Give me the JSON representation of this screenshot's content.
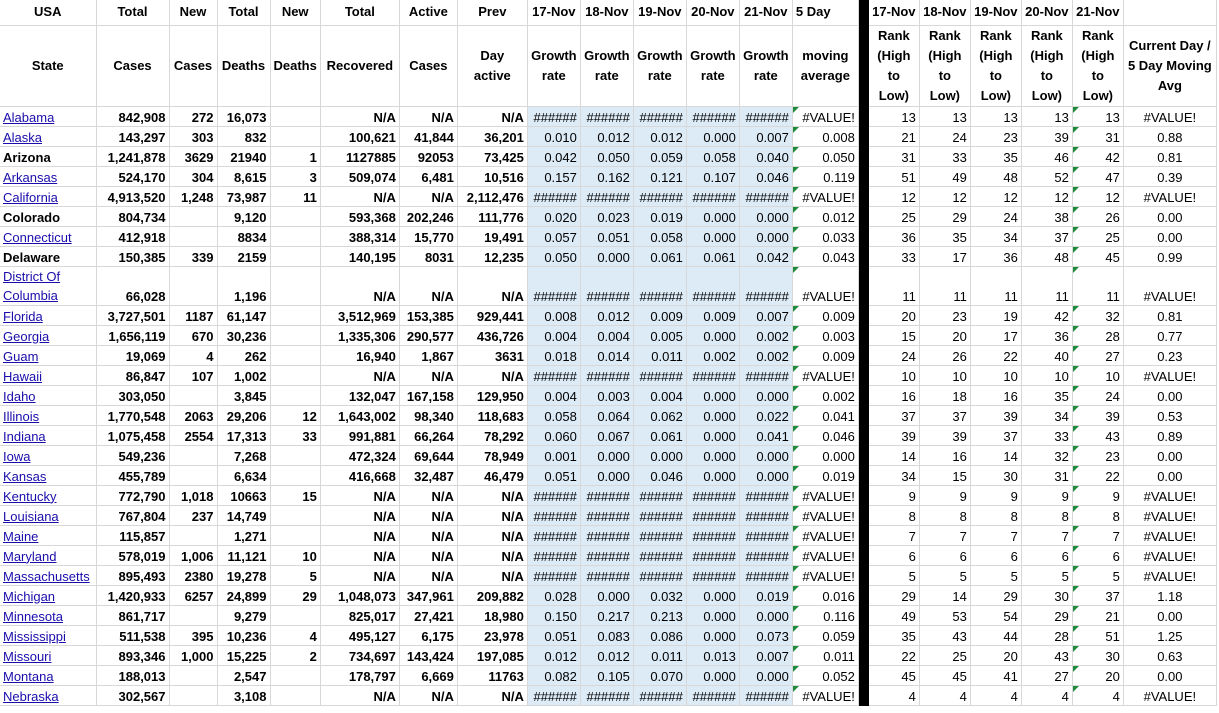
{
  "header1": [
    "USA",
    "Total",
    "New",
    "Total",
    "New",
    "Total",
    "Active",
    "Prev",
    "17-Nov",
    "18-Nov",
    "19-Nov",
    "20-Nov",
    "21-Nov",
    "5 Day",
    "",
    "17-Nov",
    "18-Nov",
    "19-Nov",
    "20-Nov",
    "21-Nov",
    ""
  ],
  "header2": [
    "State",
    "Cases",
    "Cases",
    "Deaths",
    "Deaths",
    "Recovered",
    "Cases",
    "Day active",
    "Growth rate",
    "Growth rate",
    "Growth rate",
    "Growth rate",
    "Growth rate",
    "moving average",
    "",
    "Rank (High to Low)",
    "Rank (High to Low)",
    "Rank (High to Low)",
    "Rank (High to Low)",
    "Rank (High to Low)",
    "Current Day / 5 Day Moving Avg"
  ],
  "rows": [
    {
      "state": "Alabama",
      "bold": false,
      "c": [
        "842,908",
        "272",
        "16,073",
        "",
        "N/A",
        "N/A",
        "N/A",
        "######",
        "######",
        "######",
        "######",
        "######",
        "#VALUE!",
        "13",
        "13",
        "13",
        "13",
        "13",
        "#VALUE!"
      ]
    },
    {
      "state": "Alaska",
      "bold": false,
      "c": [
        "143,297",
        "303",
        "832",
        "",
        "100,621",
        "41,844",
        "36,201",
        "0.010",
        "0.012",
        "0.012",
        "0.000",
        "0.007",
        "0.008",
        "21",
        "24",
        "23",
        "39",
        "31",
        "0.88"
      ]
    },
    {
      "state": "Arizona",
      "bold": true,
      "c": [
        "1,241,878",
        "3629",
        "21940",
        "1",
        "1127885",
        "92053",
        "73,425",
        "0.042",
        "0.050",
        "0.059",
        "0.058",
        "0.040",
        "0.050",
        "31",
        "33",
        "35",
        "46",
        "42",
        "0.81"
      ]
    },
    {
      "state": "Arkansas",
      "bold": false,
      "c": [
        "524,170",
        "304",
        "8,615",
        "3",
        "509,074",
        "6,481",
        "10,516",
        "0.157",
        "0.162",
        "0.121",
        "0.107",
        "0.046",
        "0.119",
        "51",
        "49",
        "48",
        "52",
        "47",
        "0.39"
      ]
    },
    {
      "state": "California",
      "bold": false,
      "c": [
        "4,913,520",
        "1,248",
        "73,987",
        "11",
        "N/A",
        "N/A",
        "2,112,476",
        "######",
        "######",
        "######",
        "######",
        "######",
        "#VALUE!",
        "12",
        "12",
        "12",
        "12",
        "12",
        "#VALUE!"
      ]
    },
    {
      "state": "Colorado",
      "bold": true,
      "c": [
        "804,734",
        "",
        "9,120",
        "",
        "593,368",
        "202,246",
        "111,776",
        "0.020",
        "0.023",
        "0.019",
        "0.000",
        "0.000",
        "0.012",
        "25",
        "29",
        "24",
        "38",
        "26",
        "0.00"
      ]
    },
    {
      "state": "Connecticut",
      "bold": false,
      "c": [
        "412,918",
        "",
        "8834",
        "",
        "388,314",
        "15,770",
        "19,491",
        "0.057",
        "0.051",
        "0.058",
        "0.000",
        "0.000",
        "0.033",
        "36",
        "35",
        "34",
        "37",
        "25",
        "0.00"
      ]
    },
    {
      "state": "Delaware",
      "bold": true,
      "c": [
        "150,385",
        "339",
        "2159",
        "",
        "140,195",
        "8031",
        "12,235",
        "0.050",
        "0.000",
        "0.061",
        "0.061",
        "0.042",
        "0.043",
        "33",
        "17",
        "36",
        "48",
        "45",
        "0.99"
      ]
    },
    {
      "state": "District Of Columbia",
      "bold": false,
      "tall": true,
      "c": [
        "66,028",
        "",
        "1,196",
        "",
        "N/A",
        "N/A",
        "N/A",
        "######",
        "######",
        "######",
        "######",
        "######",
        "#VALUE!",
        "11",
        "11",
        "11",
        "11",
        "11",
        "#VALUE!"
      ]
    },
    {
      "state": "Florida",
      "bold": false,
      "c": [
        "3,727,501",
        "1187",
        "61,147",
        "",
        "3,512,969",
        "153,385",
        "929,441",
        "0.008",
        "0.012",
        "0.009",
        "0.009",
        "0.007",
        "0.009",
        "20",
        "23",
        "19",
        "42",
        "32",
        "0.81"
      ]
    },
    {
      "state": "Georgia",
      "bold": false,
      "c": [
        "1,656,119",
        "670",
        "30,236",
        "",
        "1,335,306",
        "290,577",
        "436,726",
        "0.004",
        "0.004",
        "0.005",
        "0.000",
        "0.002",
        "0.003",
        "15",
        "20",
        "17",
        "36",
        "28",
        "0.77"
      ]
    },
    {
      "state": "Guam",
      "bold": false,
      "c": [
        "19,069",
        "4",
        "262",
        "",
        "16,940",
        "1,867",
        "3631",
        "0.018",
        "0.014",
        "0.011",
        "0.002",
        "0.002",
        "0.009",
        "24",
        "26",
        "22",
        "40",
        "27",
        "0.23"
      ]
    },
    {
      "state": "Hawaii",
      "bold": false,
      "c": [
        "86,847",
        "107",
        "1,002",
        "",
        "N/A",
        "N/A",
        "N/A",
        "######",
        "######",
        "######",
        "######",
        "######",
        "#VALUE!",
        "10",
        "10",
        "10",
        "10",
        "10",
        "#VALUE!"
      ]
    },
    {
      "state": "Idaho",
      "bold": false,
      "c": [
        "303,050",
        "",
        "3,845",
        "",
        "132,047",
        "167,158",
        "129,950",
        "0.004",
        "0.003",
        "0.004",
        "0.000",
        "0.000",
        "0.002",
        "16",
        "18",
        "16",
        "35",
        "24",
        "0.00"
      ]
    },
    {
      "state": "Illinois",
      "bold": false,
      "c": [
        "1,770,548",
        "2063",
        "29,206",
        "12",
        "1,643,002",
        "98,340",
        "118,683",
        "0.058",
        "0.064",
        "0.062",
        "0.000",
        "0.022",
        "0.041",
        "37",
        "37",
        "39",
        "34",
        "39",
        "0.53"
      ]
    },
    {
      "state": "Indiana",
      "bold": false,
      "c": [
        "1,075,458",
        "2554",
        "17,313",
        "33",
        "991,881",
        "66,264",
        "78,292",
        "0.060",
        "0.067",
        "0.061",
        "0.000",
        "0.041",
        "0.046",
        "39",
        "39",
        "37",
        "33",
        "43",
        "0.89"
      ]
    },
    {
      "state": "Iowa",
      "bold": false,
      "c": [
        "549,236",
        "",
        "7,268",
        "",
        "472,324",
        "69,644",
        "78,949",
        "0.001",
        "0.000",
        "0.000",
        "0.000",
        "0.000",
        "0.000",
        "14",
        "16",
        "14",
        "32",
        "23",
        "0.00"
      ]
    },
    {
      "state": "Kansas",
      "bold": false,
      "c": [
        "455,789",
        "",
        "6,634",
        "",
        "416,668",
        "32,487",
        "46,479",
        "0.051",
        "0.000",
        "0.046",
        "0.000",
        "0.000",
        "0.019",
        "34",
        "15",
        "30",
        "31",
        "22",
        "0.00"
      ]
    },
    {
      "state": "Kentucky",
      "bold": false,
      "c": [
        "772,790",
        "1,018",
        "10663",
        "15",
        "N/A",
        "N/A",
        "N/A",
        "######",
        "######",
        "######",
        "######",
        "######",
        "#VALUE!",
        "9",
        "9",
        "9",
        "9",
        "9",
        "#VALUE!"
      ]
    },
    {
      "state": "Louisiana",
      "bold": false,
      "c": [
        "767,804",
        "237",
        "14,749",
        "",
        "N/A",
        "N/A",
        "N/A",
        "######",
        "######",
        "######",
        "######",
        "######",
        "#VALUE!",
        "8",
        "8",
        "8",
        "8",
        "8",
        "#VALUE!"
      ]
    },
    {
      "state": "Maine",
      "bold": false,
      "c": [
        "115,857",
        "",
        "1,271",
        "",
        "N/A",
        "N/A",
        "N/A",
        "######",
        "######",
        "######",
        "######",
        "######",
        "#VALUE!",
        "7",
        "7",
        "7",
        "7",
        "7",
        "#VALUE!"
      ]
    },
    {
      "state": "Maryland",
      "bold": false,
      "c": [
        "578,019",
        "1,006",
        "11,121",
        "10",
        "N/A",
        "N/A",
        "N/A",
        "######",
        "######",
        "######",
        "######",
        "######",
        "#VALUE!",
        "6",
        "6",
        "6",
        "6",
        "6",
        "#VALUE!"
      ]
    },
    {
      "state": "Massachusetts",
      "bold": false,
      "c": [
        "895,493",
        "2380",
        "19,278",
        "5",
        "N/A",
        "N/A",
        "N/A",
        "######",
        "######",
        "######",
        "######",
        "######",
        "#VALUE!",
        "5",
        "5",
        "5",
        "5",
        "5",
        "#VALUE!"
      ]
    },
    {
      "state": "Michigan",
      "bold": false,
      "c": [
        "1,420,933",
        "6257",
        "24,899",
        "29",
        "1,048,073",
        "347,961",
        "209,882",
        "0.028",
        "0.000",
        "0.032",
        "0.000",
        "0.019",
        "0.016",
        "29",
        "14",
        "29",
        "30",
        "37",
        "1.18"
      ]
    },
    {
      "state": "Minnesota",
      "bold": false,
      "c": [
        "861,717",
        "",
        "9,279",
        "",
        "825,017",
        "27,421",
        "18,980",
        "0.150",
        "0.217",
        "0.213",
        "0.000",
        "0.000",
        "0.116",
        "49",
        "53",
        "54",
        "29",
        "21",
        "0.00"
      ]
    },
    {
      "state": "Mississippi",
      "bold": false,
      "c": [
        "511,538",
        "395",
        "10,236",
        "4",
        "495,127",
        "6,175",
        "23,978",
        "0.051",
        "0.083",
        "0.086",
        "0.000",
        "0.073",
        "0.059",
        "35",
        "43",
        "44",
        "28",
        "51",
        "1.25"
      ]
    },
    {
      "state": "Missouri",
      "bold": false,
      "c": [
        "893,346",
        "1,000",
        "15,225",
        "2",
        "734,697",
        "143,424",
        "197,085",
        "0.012",
        "0.012",
        "0.011",
        "0.013",
        "0.007",
        "0.011",
        "22",
        "25",
        "20",
        "43",
        "30",
        "0.63"
      ]
    },
    {
      "state": "Montana",
      "bold": false,
      "c": [
        "188,013",
        "",
        "2,547",
        "",
        "178,797",
        "6,669",
        "11763",
        "0.082",
        "0.105",
        "0.070",
        "0.000",
        "0.000",
        "0.052",
        "45",
        "45",
        "41",
        "27",
        "20",
        "0.00"
      ]
    },
    {
      "state": "Nebraska",
      "bold": false,
      "c": [
        "302,567",
        "",
        "3,108",
        "",
        "N/A",
        "N/A",
        "N/A",
        "######",
        "######",
        "######",
        "######",
        "######",
        "#VALUE!",
        "4",
        "4",
        "4",
        "4",
        "4",
        "#VALUE!"
      ]
    }
  ],
  "colors": {
    "growth_fill": "#ddebf7",
    "link": "#1a0dab",
    "separator": "#000000",
    "error_marker": "#1e8a3c"
  }
}
